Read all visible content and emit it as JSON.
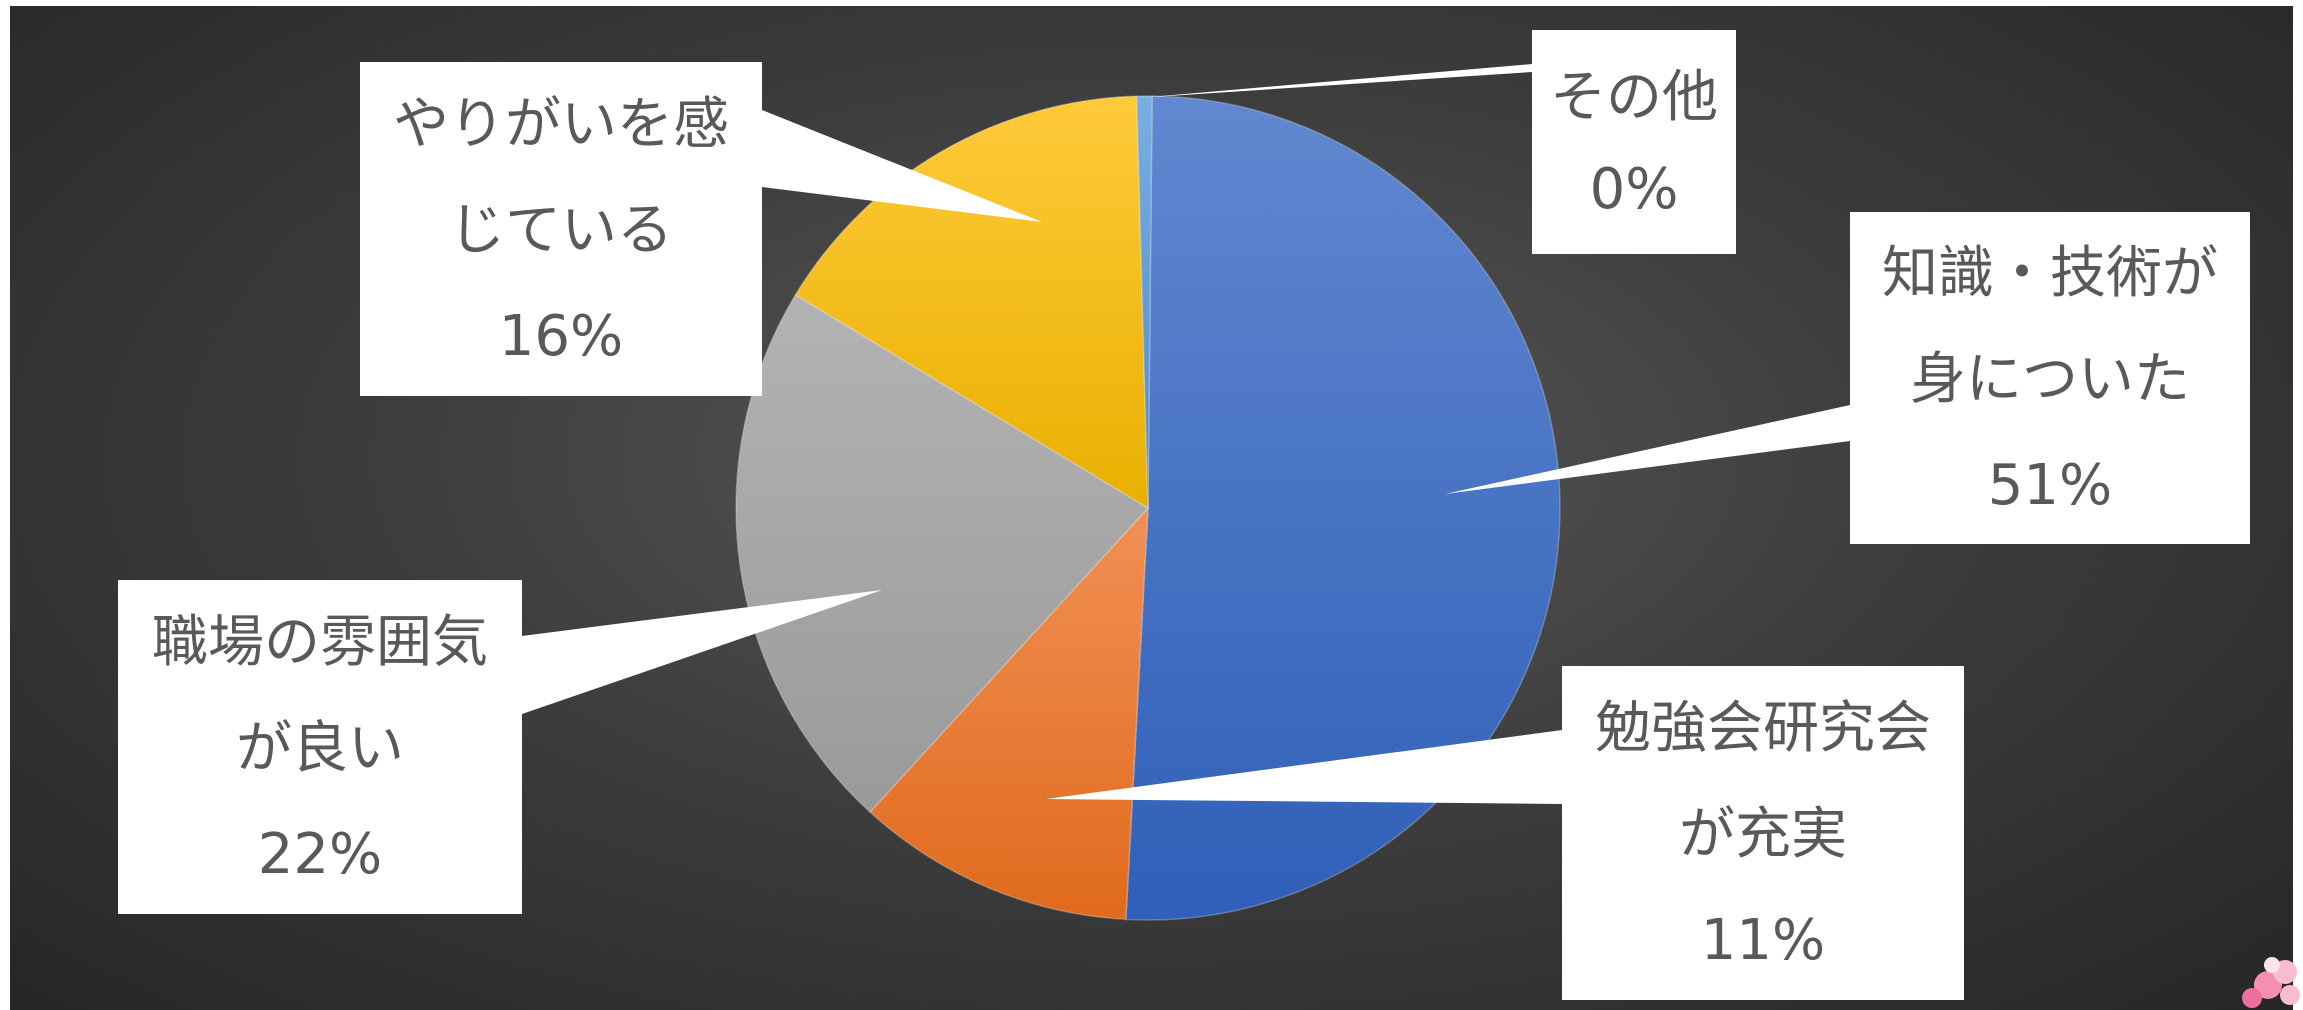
{
  "chart_data": {
    "type": "pie",
    "title": "",
    "slices": [
      {
        "label": [
          "知識・技術が",
          "身についた"
        ],
        "percent_label": "51%",
        "value": 51,
        "color": "#4472c4"
      },
      {
        "label": [
          "勉強会研究会",
          "が充実"
        ],
        "percent_label": "11%",
        "value": 11,
        "color": "#ed7d31"
      },
      {
        "label": [
          "職場の雰囲気",
          "が良い"
        ],
        "percent_label": "22%",
        "value": 22,
        "color": "#a5a5a5"
      },
      {
        "label": [
          "やりがいを感",
          "じている"
        ],
        "percent_label": "16%",
        "value": 16,
        "color": "#ffc000"
      },
      {
        "label": [
          "その他"
        ],
        "percent_label": "0%",
        "value": 0.6,
        "color": "#5b9bd5"
      }
    ],
    "legend": "none",
    "data_labels": "callouts"
  }
}
